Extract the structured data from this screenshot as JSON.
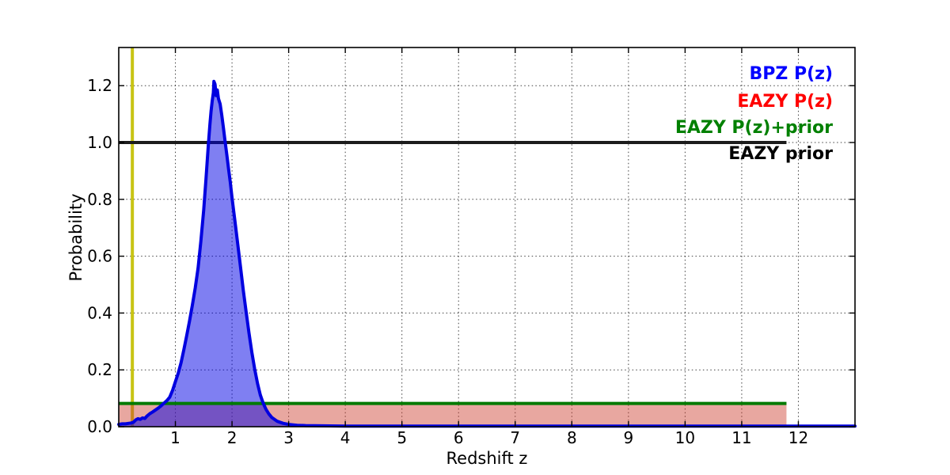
{
  "chart_data": {
    "type": "line",
    "title": "",
    "xlabel": "Redshift z",
    "ylabel": "Probability",
    "xlim": [
      0,
      13
    ],
    "ylim": [
      0,
      1.3343
    ],
    "xticks": [
      1,
      2,
      3,
      4,
      5,
      6,
      7,
      8,
      9,
      10,
      11,
      12
    ],
    "yticks": [
      0.0,
      0.2,
      0.4,
      0.6,
      0.8,
      1.0,
      1.2
    ],
    "grid": true,
    "legend_position": "upper-right text-only",
    "legend": [
      {
        "label": "BPZ P(z)",
        "color": "#0000ff"
      },
      {
        "label": "EAZY P(z)",
        "color": "#ff0000"
      },
      {
        "label": "EAZY P(z)+prior",
        "color": "#008000"
      },
      {
        "label": "EAZY prior",
        "color": "#000000"
      }
    ],
    "series": [
      {
        "name": "redshift-marker",
        "style": "vline",
        "line_color": "#c8c414",
        "line_width": 4,
        "x_value": 0.24
      },
      {
        "name": "EAZY P(z)",
        "style": "filled_flat",
        "line_color": "#c94132",
        "fill_color": "rgba(205,60,45,0.45)",
        "line_width": 2,
        "x_range": [
          0,
          11.79
        ],
        "y_value": 0.082
      },
      {
        "name": "EAZY prior",
        "style": "hline",
        "line_color": "#1c1c1c",
        "line_width": 4,
        "x_range": [
          0,
          11.79
        ],
        "y_value": 1.0
      },
      {
        "name": "BPZ P(z)",
        "style": "filled_curve",
        "line_color": "#0000e0",
        "fill_color": "rgba(0,0,230,0.5)",
        "line_width": 4,
        "x": [
          0,
          0.06,
          0.12,
          0.18,
          0.22,
          0.26,
          0.3,
          0.34,
          0.38,
          0.42,
          0.46,
          0.5,
          0.55,
          0.6,
          0.65,
          0.7,
          0.75,
          0.8,
          0.85,
          0.9,
          0.95,
          1.0,
          1.05,
          1.1,
          1.15,
          1.2,
          1.25,
          1.3,
          1.35,
          1.4,
          1.45,
          1.5,
          1.54,
          1.58,
          1.61,
          1.63,
          1.65,
          1.67,
          1.68,
          1.7,
          1.72,
          1.74,
          1.76,
          1.79,
          1.82,
          1.85,
          1.88,
          1.91,
          1.94,
          1.97,
          2.0,
          2.05,
          2.1,
          2.15,
          2.2,
          2.25,
          2.3,
          2.35,
          2.4,
          2.45,
          2.5,
          2.55,
          2.6,
          2.65,
          2.7,
          2.8,
          2.9,
          3.0,
          3.15,
          3.3,
          3.6,
          4.0,
          5.0,
          7.0,
          9.0,
          11.0,
          12.0,
          13.0
        ],
        "y": [
          0.008,
          0.01,
          0.01,
          0.012,
          0.013,
          0.016,
          0.024,
          0.028,
          0.026,
          0.031,
          0.029,
          0.038,
          0.046,
          0.052,
          0.059,
          0.066,
          0.074,
          0.083,
          0.092,
          0.104,
          0.128,
          0.158,
          0.188,
          0.225,
          0.272,
          0.32,
          0.372,
          0.428,
          0.488,
          0.558,
          0.652,
          0.762,
          0.872,
          0.985,
          1.065,
          1.11,
          1.145,
          1.175,
          1.215,
          1.205,
          1.165,
          1.185,
          1.155,
          1.135,
          1.095,
          1.05,
          1.0,
          0.955,
          0.905,
          0.86,
          0.805,
          0.725,
          0.645,
          0.562,
          0.478,
          0.402,
          0.33,
          0.262,
          0.203,
          0.152,
          0.112,
          0.083,
          0.061,
          0.045,
          0.033,
          0.019,
          0.012,
          0.008,
          0.005,
          0.004,
          0.003,
          0.002,
          0.002,
          0.002,
          0.002,
          0.002,
          0.002,
          0.002
        ]
      },
      {
        "name": "EAZY P(z)+prior",
        "style": "hline",
        "line_color": "#007a00",
        "line_width": 4,
        "x_range": [
          0,
          11.79
        ],
        "y_value": 0.082
      }
    ]
  }
}
